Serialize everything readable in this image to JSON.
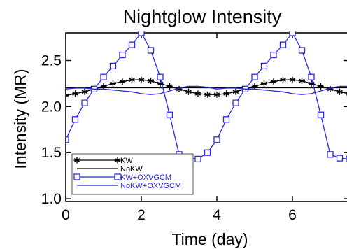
{
  "chart_data": {
    "type": "line",
    "title": "Nightglow Intensity",
    "xlabel": "Time (day)",
    "ylabel": "Intensity (MR)",
    "xlim": [
      0,
      7.5
    ],
    "ylim": [
      0.97,
      2.8
    ],
    "x_ticks": [
      0,
      2,
      4,
      6
    ],
    "y_ticks": [
      1.0,
      1.5,
      2.0,
      2.5
    ],
    "x_tick_labels": [
      "0",
      "2",
      "4",
      "6"
    ],
    "y_tick_labels": [
      "1.0",
      "1.5",
      "2.0",
      "2.5"
    ],
    "grid": false,
    "legend_position": "bottom-left",
    "series": [
      {
        "name": "KW",
        "color": "#000000",
        "marker": "asterisk",
        "x": [
          0,
          0.25,
          0.5,
          0.75,
          1.0,
          1.25,
          1.5,
          1.75,
          2.0,
          2.25,
          2.5,
          2.75,
          3.0,
          3.25,
          3.5,
          3.75,
          4.0,
          4.25,
          4.5,
          4.75,
          5.0,
          5.25,
          5.5,
          5.75,
          6.0,
          6.25,
          6.5,
          6.75,
          7.0,
          7.25,
          7.5
        ],
        "y": [
          2.12,
          2.14,
          2.16,
          2.19,
          2.22,
          2.25,
          2.27,
          2.29,
          2.29,
          2.28,
          2.25,
          2.22,
          2.19,
          2.16,
          2.14,
          2.13,
          2.13,
          2.14,
          2.16,
          2.19,
          2.22,
          2.25,
          2.27,
          2.29,
          2.29,
          2.28,
          2.25,
          2.22,
          2.19,
          2.16,
          2.14
        ]
      },
      {
        "name": "NoKW",
        "color": "#000000",
        "marker": "none",
        "x": [
          0,
          7.5
        ],
        "y": [
          2.205,
          2.205
        ]
      },
      {
        "name": "KW+OXVGCM",
        "color": "#2b2bd6",
        "marker": "square",
        "x": [
          0,
          0.25,
          0.5,
          0.75,
          1.0,
          1.25,
          1.5,
          1.75,
          2.0,
          2.25,
          2.5,
          2.75,
          3.0,
          3.25,
          3.5,
          3.75,
          4.0,
          4.25,
          4.5,
          4.75,
          5.0,
          5.25,
          5.5,
          5.75,
          6.0,
          6.25,
          6.5,
          6.75,
          7.0,
          7.25,
          7.5
        ],
        "y": [
          1.64,
          1.86,
          2.04,
          2.19,
          2.32,
          2.44,
          2.56,
          2.67,
          2.8,
          2.61,
          2.32,
          1.91,
          1.48,
          1.44,
          1.43,
          1.5,
          1.64,
          1.86,
          2.04,
          2.19,
          2.32,
          2.44,
          2.56,
          2.67,
          2.8,
          2.61,
          2.32,
          1.91,
          1.48,
          1.44,
          1.43
        ]
      },
      {
        "name": "NoKW+OXVGCM",
        "color": "#2b2bd6",
        "marker": "none",
        "x": [
          0,
          0.25,
          0.5,
          0.75,
          1.0,
          1.25,
          1.5,
          1.75,
          2.0,
          2.25,
          2.5,
          2.75,
          3.0,
          3.25,
          3.5,
          3.75,
          4.0,
          4.25,
          4.5,
          4.75,
          5.0,
          5.25,
          5.5,
          5.75,
          6.0,
          6.25,
          6.5,
          6.75,
          7.0,
          7.25,
          7.5
        ],
        "y": [
          2.19,
          2.2,
          2.2,
          2.19,
          2.19,
          2.18,
          2.17,
          2.16,
          2.14,
          2.13,
          2.14,
          2.17,
          2.2,
          2.22,
          2.22,
          2.21,
          2.19,
          2.2,
          2.2,
          2.19,
          2.19,
          2.18,
          2.17,
          2.16,
          2.14,
          2.13,
          2.14,
          2.17,
          2.2,
          2.22,
          2.22
        ]
      }
    ]
  }
}
